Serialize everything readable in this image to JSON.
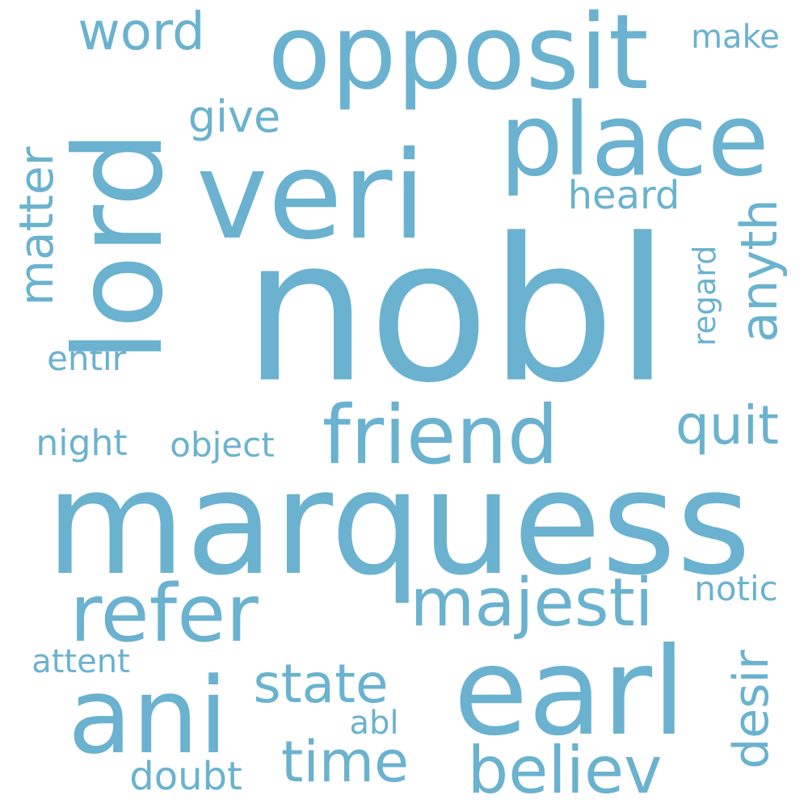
{
  "colors": {
    "word": "#6ab2cf",
    "background": "#ffffff"
  },
  "words": {
    "nobl": "nobl",
    "marquess": "marquess",
    "lord": "lord",
    "veri": "veri",
    "opposit": "opposit",
    "place": "place",
    "earl": "earl",
    "ani": "ani",
    "friend": "friend",
    "refer": "refer",
    "majesti": "majesti",
    "believ": "believ",
    "time": "time",
    "state": "state",
    "word": "word",
    "matter": "matter",
    "anyth": "anyth",
    "quit": "quit",
    "give": "give",
    "heard": "heard",
    "desir": "desir",
    "make": "make",
    "regard": "regard",
    "entir": "entir",
    "night": "night",
    "object": "object",
    "notic": "notic",
    "attent": "attent",
    "abl": "abl",
    "doubt": "doubt"
  }
}
